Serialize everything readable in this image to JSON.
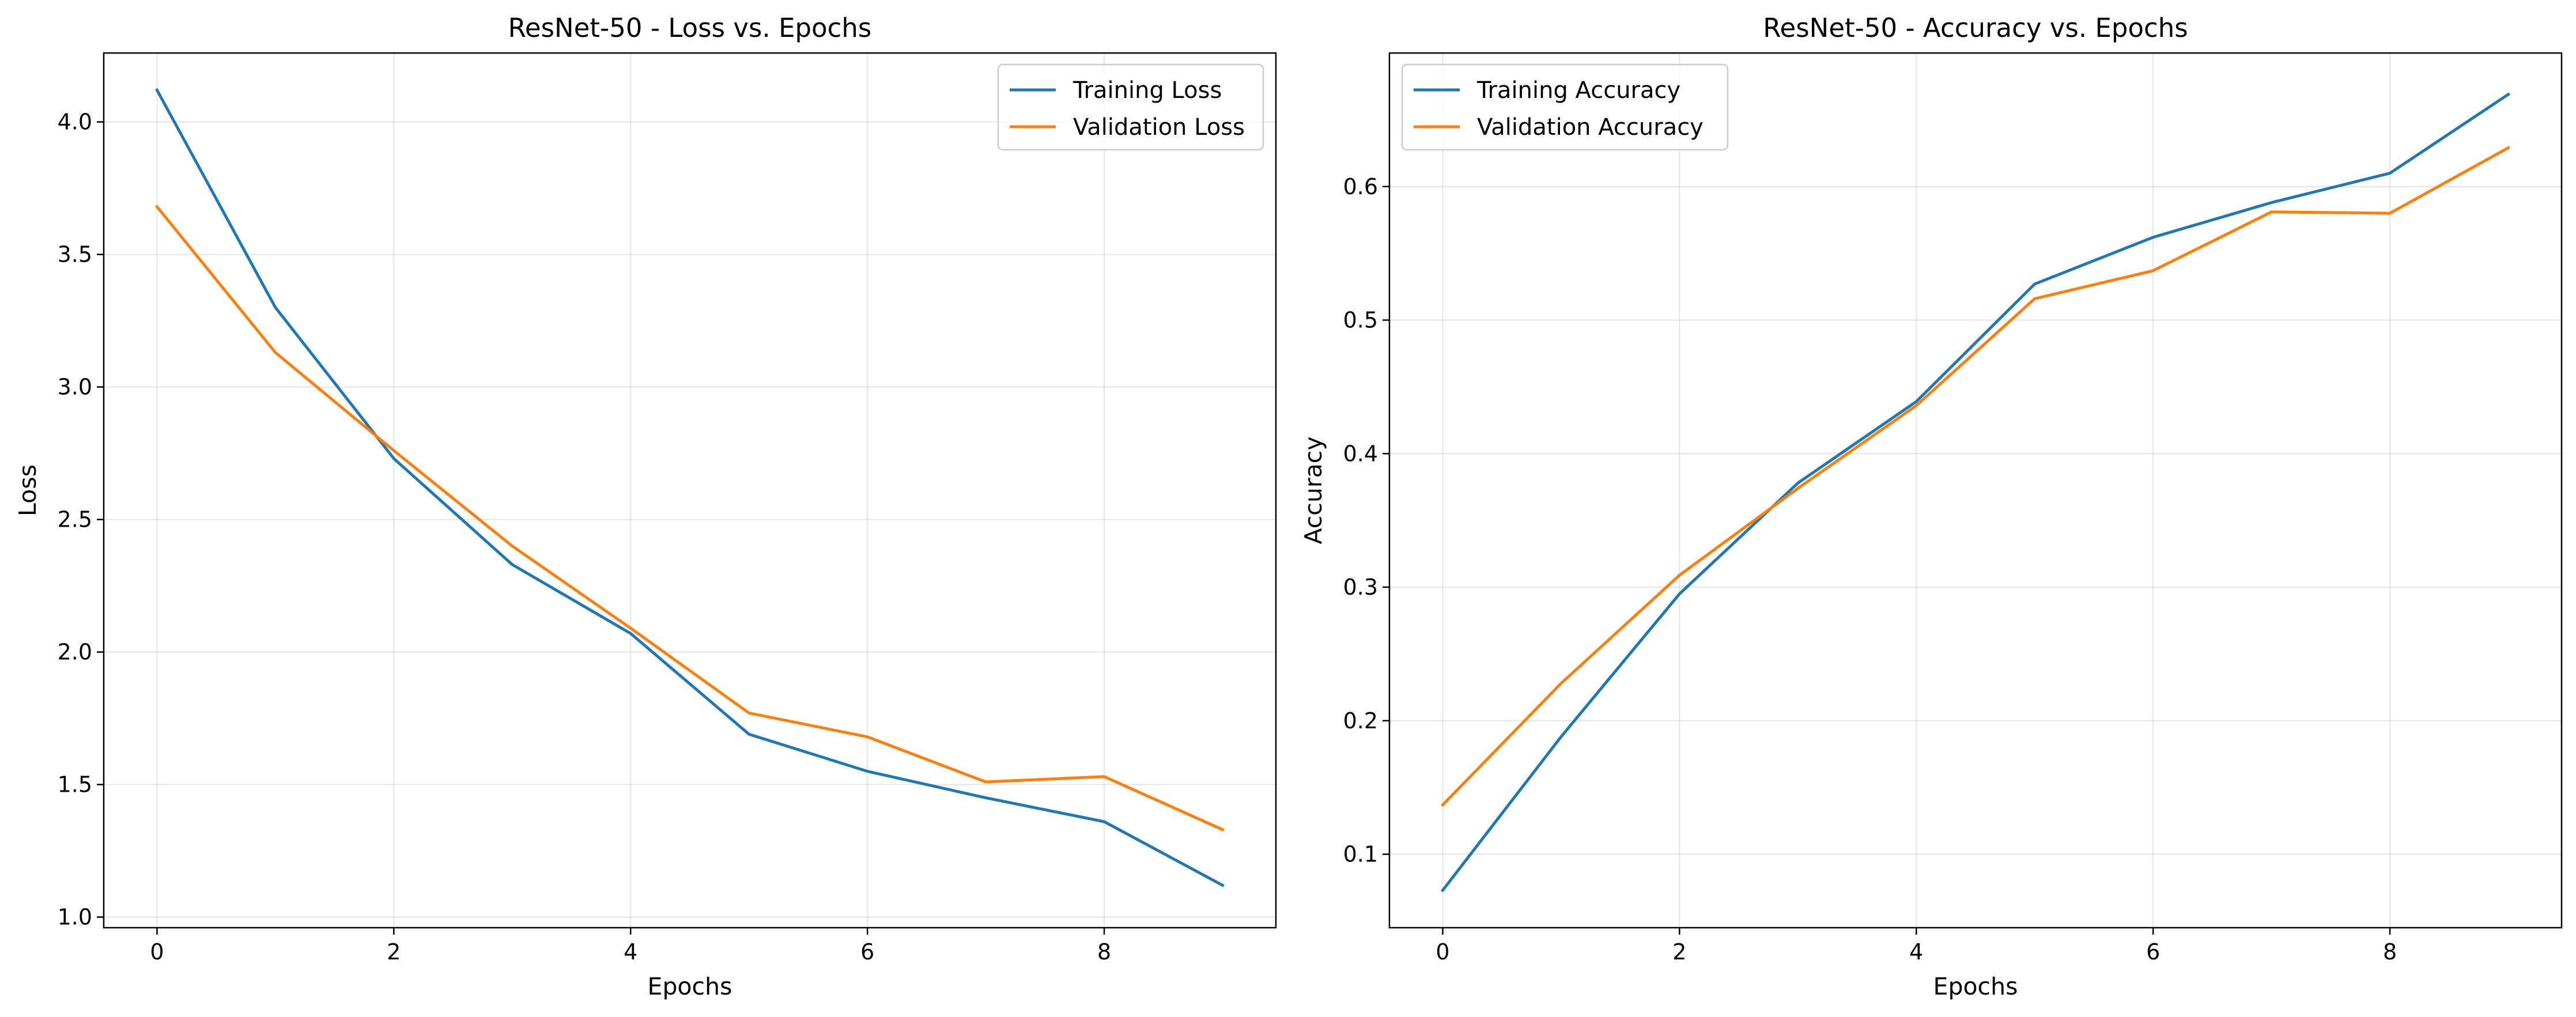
{
  "chart_data": [
    {
      "type": "line",
      "title": "ResNet-50 - Loss vs. Epochs",
      "xlabel": "Epochs",
      "ylabel": "Loss",
      "x": [
        0,
        1,
        2,
        3,
        4,
        5,
        6,
        7,
        8,
        9
      ],
      "xlim": [
        -0.45,
        9.45
      ],
      "ylim": [
        0.96,
        4.26
      ],
      "xticks": [
        0,
        2,
        4,
        6,
        8
      ],
      "xtick_labels": [
        "0",
        "2",
        "4",
        "6",
        "8"
      ],
      "yticks": [
        1.0,
        1.5,
        2.0,
        2.5,
        3.0,
        3.5,
        4.0
      ],
      "ytick_labels": [
        "1.0",
        "1.5",
        "2.0",
        "2.5",
        "3.0",
        "3.5",
        "4.0"
      ],
      "grid": true,
      "legend_position": "top-right",
      "series": [
        {
          "name": "Training Loss",
          "color": "#1f77b4",
          "values": [
            4.12,
            3.3,
            2.73,
            2.33,
            2.07,
            1.69,
            1.55,
            1.45,
            1.36,
            1.12
          ]
        },
        {
          "name": "Validation Loss",
          "color": "#ff7f0e",
          "values": [
            3.68,
            3.13,
            2.76,
            2.4,
            2.09,
            1.77,
            1.68,
            1.51,
            1.53,
            1.33
          ]
        }
      ]
    },
    {
      "type": "line",
      "title": "ResNet-50 - Accuracy vs. Epochs",
      "xlabel": "Epochs",
      "ylabel": "Accuracy",
      "x": [
        0,
        1,
        2,
        3,
        4,
        5,
        6,
        7,
        8,
        9
      ],
      "xlim": [
        -0.45,
        9.45
      ],
      "ylim": [
        0.045,
        0.7
      ],
      "xticks": [
        0,
        2,
        4,
        6,
        8
      ],
      "xtick_labels": [
        "0",
        "2",
        "4",
        "6",
        "8"
      ],
      "yticks": [
        0.1,
        0.2,
        0.3,
        0.4,
        0.5,
        0.6
      ],
      "ytick_labels": [
        "0.1",
        "0.2",
        "0.3",
        "0.4",
        "0.5",
        "0.6"
      ],
      "grid": true,
      "legend_position": "top-left",
      "series": [
        {
          "name": "Training Accuracy",
          "color": "#1f77b4",
          "values": [
            0.073,
            0.188,
            0.295,
            0.378,
            0.439,
            0.527,
            0.562,
            0.588,
            0.61,
            0.669
          ]
        },
        {
          "name": "Validation Accuracy",
          "color": "#ff7f0e",
          "values": [
            0.137,
            0.228,
            0.309,
            0.374,
            0.436,
            0.516,
            0.537,
            0.581,
            0.58,
            0.629
          ]
        }
      ]
    }
  ]
}
